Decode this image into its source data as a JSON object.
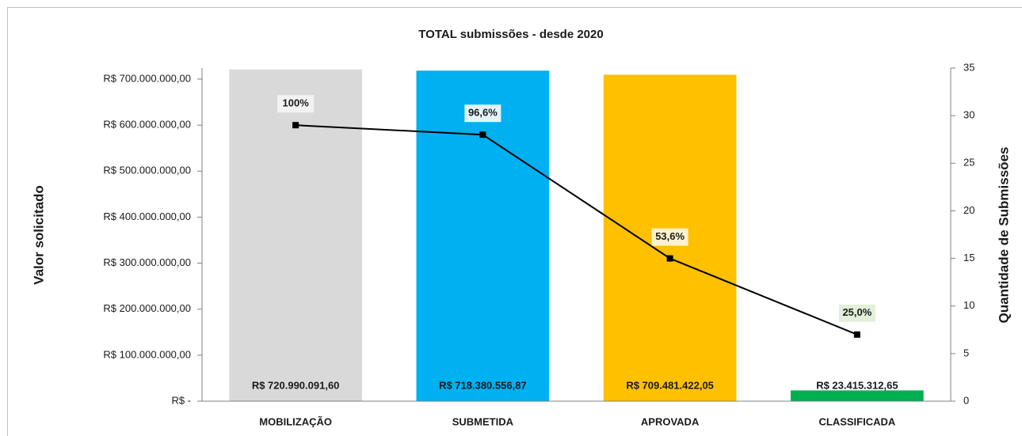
{
  "chart_data": {
    "type": "bar",
    "title": "TOTAL submissões - desde 2020",
    "y_label": "Valor solicitado",
    "y2_label": "Quantidade de Submissões",
    "categories": [
      "MOBILIZAÇÃO",
      "SUBMETIDA",
      "APROVADA",
      "CLASSIFICADA"
    ],
    "series": [
      {
        "type": "bar",
        "colors": [
          "#d9d9d9",
          "#00b0f0",
          "#ffc000",
          "#00b050"
        ],
        "values": [
          720990091.6,
          718380556.87,
          709481422.05,
          23415312.65
        ],
        "value_labels": [
          "R$ 720.990.091,60",
          "R$ 718.380.556,87",
          "R$ 709.481.422,05",
          "R$ 23.415.312,65"
        ]
      },
      {
        "type": "line",
        "axis": "y2",
        "color": "#000000",
        "values": [
          29,
          28,
          15,
          7
        ],
        "annotations": [
          "100%",
          "96,6%",
          "53,6%",
          "25,0%"
        ],
        "annotation_colors": [
          "#f2f2f2",
          "#e3f4fb",
          "#fff2cc",
          "#e2efda"
        ]
      }
    ],
    "ylim": [
      0,
      724000000
    ],
    "yticks": [
      {
        "value": 0,
        "label": "R$ -"
      },
      {
        "value": 100000000,
        "label": "R$ 100.000.000,00"
      },
      {
        "value": 200000000,
        "label": "R$ 200.000.000,00"
      },
      {
        "value": 300000000,
        "label": "R$ 300.000.000,00"
      },
      {
        "value": 400000000,
        "label": "R$ 400.000.000,00"
      },
      {
        "value": 500000000,
        "label": "R$ 500.000.000,00"
      },
      {
        "value": 600000000,
        "label": "R$ 600.000.000,00"
      },
      {
        "value": 700000000,
        "label": "R$ 700.000.000,00"
      }
    ],
    "y2lim": [
      0,
      35
    ],
    "y2ticks": [
      0,
      5,
      10,
      15,
      20,
      25,
      30,
      35
    ]
  }
}
